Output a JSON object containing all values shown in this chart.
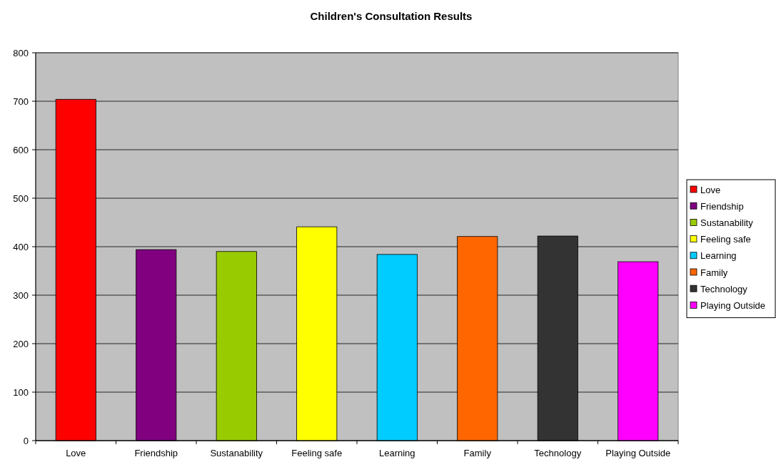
{
  "chart_data": {
    "type": "bar",
    "title": "Children's Consultation Results",
    "categories": [
      "Love",
      "Friendship",
      "Sustanability",
      "Feeling safe",
      "Learning",
      "Family",
      "Technology",
      "Playing Outside"
    ],
    "series": [
      {
        "name": "Love",
        "color": "#ff0000",
        "values": [
          704,
          null,
          null,
          null,
          null,
          null,
          null,
          null
        ]
      },
      {
        "name": "Friendship",
        "color": "#800080",
        "values": [
          null,
          394,
          null,
          null,
          null,
          null,
          null,
          null
        ]
      },
      {
        "name": "Sustanability",
        "color": "#99cc00",
        "values": [
          null,
          null,
          390,
          null,
          null,
          null,
          null,
          null
        ]
      },
      {
        "name": "Feeling safe",
        "color": "#ffff00",
        "values": [
          null,
          null,
          null,
          441,
          null,
          null,
          null,
          null
        ]
      },
      {
        "name": "Learning",
        "color": "#00ccff",
        "values": [
          null,
          null,
          null,
          null,
          384,
          null,
          null,
          null
        ]
      },
      {
        "name": "Family",
        "color": "#ff6600",
        "values": [
          null,
          null,
          null,
          null,
          null,
          421,
          null,
          null
        ]
      },
      {
        "name": "Technology",
        "color": "#333333",
        "values": [
          null,
          null,
          null,
          null,
          null,
          null,
          422,
          null
        ]
      },
      {
        "name": "Playing Outside",
        "color": "#ff00ff",
        "values": [
          null,
          null,
          null,
          null,
          null,
          null,
          null,
          369
        ]
      }
    ],
    "ylim": [
      0,
      800
    ],
    "yticks": [
      0,
      100,
      200,
      300,
      400,
      500,
      600,
      700,
      800
    ],
    "grid": "y",
    "legend": "right"
  }
}
